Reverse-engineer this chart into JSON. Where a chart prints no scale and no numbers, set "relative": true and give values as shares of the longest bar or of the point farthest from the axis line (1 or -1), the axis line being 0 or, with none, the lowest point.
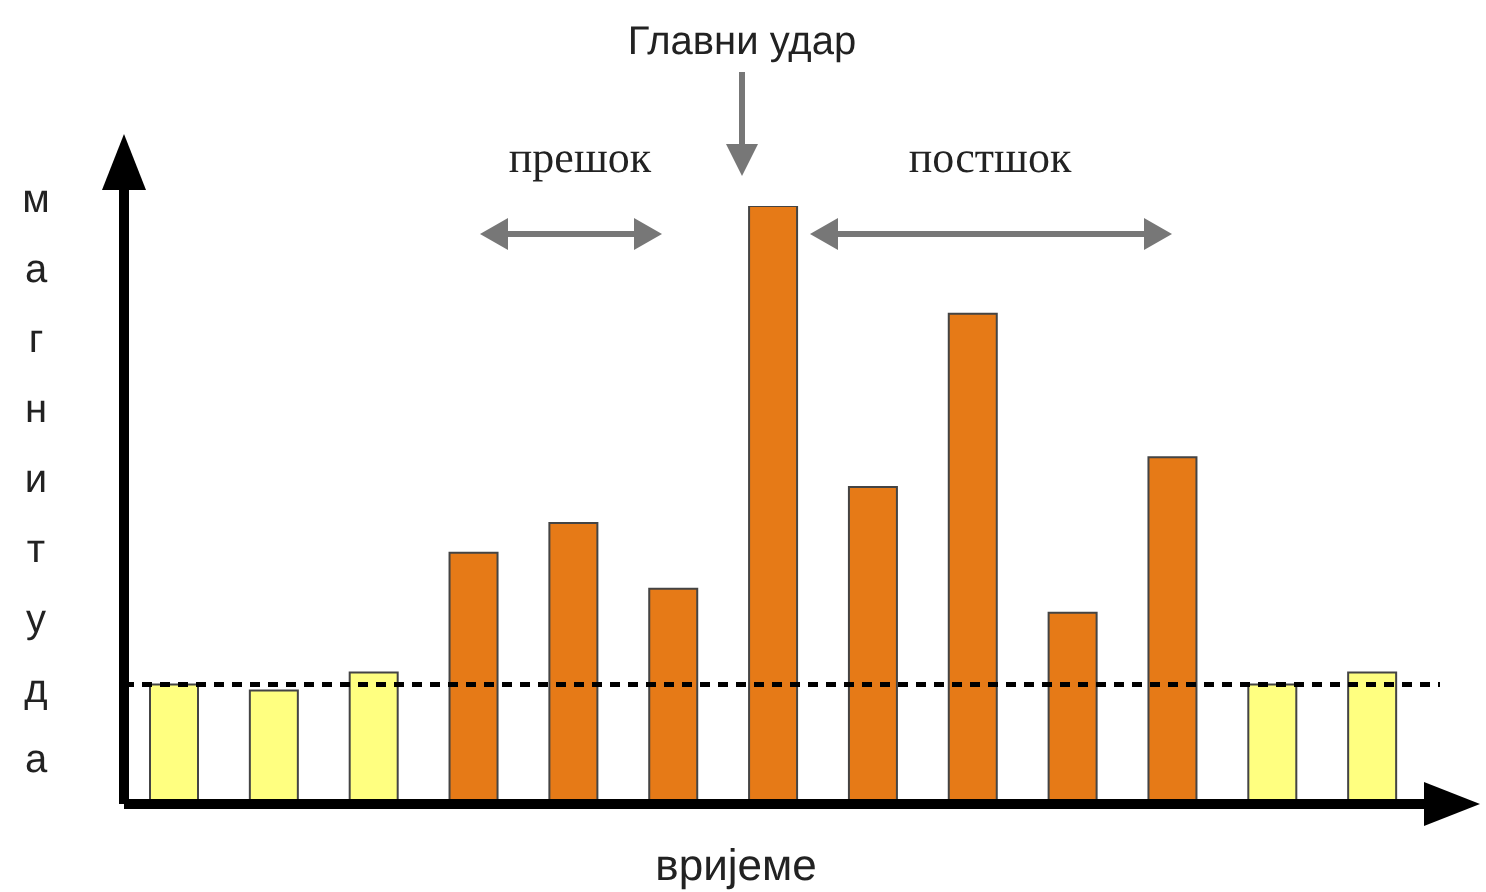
{
  "chart_data": {
    "type": "bar",
    "relative": true,
    "xlabel": "вријеме",
    "ylabel": "магнитуда",
    "annotations": [
      "Главни удар",
      "прешок",
      "постшок"
    ],
    "categories": [
      null,
      null,
      null,
      null,
      null,
      null,
      null,
      null,
      null,
      null,
      null,
      null,
      null
    ],
    "values": [
      0.2,
      0.19,
      0.22,
      0.42,
      0.47,
      0.36,
      1,
      0.53,
      0.82,
      0.32,
      0.58,
      0.2,
      0.22
    ],
    "colors": [
      "#ffff80",
      "#ffff80",
      "#ffff80",
      "#e67a17",
      "#e67a17",
      "#e67a17",
      "#e67a17",
      "#e67a17",
      "#e67a17",
      "#e67a17",
      "#e67a17",
      "#ffff80",
      "#ffff80"
    ],
    "ref_lines": [
      {
        "axis": "y",
        "value": 0.2,
        "line_style": "dashed",
        "color": "#000000"
      }
    ]
  }
}
